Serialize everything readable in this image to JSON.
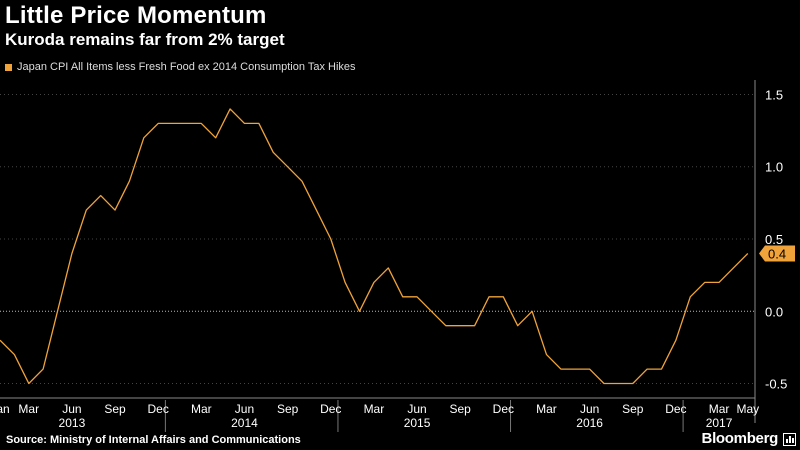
{
  "header": {
    "title": "Little Price Momentum",
    "subtitle": "Kuroda remains far from 2% target"
  },
  "footer": {
    "source": "Source: Ministry of Internal Affairs and Communications",
    "brand": "Bloomberg",
    "brand_icon": "bloomberg-bar-chart-icon"
  },
  "colors": {
    "background": "#000000",
    "series": "#f0a33a",
    "grid": "#444444",
    "zero_line": "#bbbbbb",
    "text": "#ffffff"
  },
  "chart_data": {
    "type": "line",
    "series": [
      {
        "name": "Japan CPI All Items less Fresh Food ex 2014 Consumption Tax Hikes",
        "color": "#f0a33a",
        "x": [
          "2013-01",
          "2013-02",
          "2013-03",
          "2013-04",
          "2013-05",
          "2013-06",
          "2013-07",
          "2013-08",
          "2013-09",
          "2013-10",
          "2013-11",
          "2013-12",
          "2014-01",
          "2014-02",
          "2014-03",
          "2014-04",
          "2014-05",
          "2014-06",
          "2014-07",
          "2014-08",
          "2014-09",
          "2014-10",
          "2014-11",
          "2014-12",
          "2015-01",
          "2015-02",
          "2015-03",
          "2015-04",
          "2015-05",
          "2015-06",
          "2015-07",
          "2015-08",
          "2015-09",
          "2015-10",
          "2015-11",
          "2015-12",
          "2016-01",
          "2016-02",
          "2016-03",
          "2016-04",
          "2016-05",
          "2016-06",
          "2016-07",
          "2016-08",
          "2016-09",
          "2016-10",
          "2016-11",
          "2016-12",
          "2017-01",
          "2017-02",
          "2017-03",
          "2017-04",
          "2017-05"
        ],
        "values": [
          -0.2,
          -0.3,
          -0.5,
          -0.4,
          0.0,
          0.4,
          0.7,
          0.8,
          0.7,
          0.9,
          1.2,
          1.3,
          1.3,
          1.3,
          1.3,
          1.2,
          1.4,
          1.3,
          1.3,
          1.1,
          1.0,
          0.9,
          0.7,
          0.5,
          0.2,
          0.0,
          0.2,
          0.3,
          0.1,
          0.1,
          0.0,
          -0.1,
          -0.1,
          -0.1,
          0.1,
          0.1,
          -0.1,
          0.0,
          -0.3,
          -0.4,
          -0.4,
          -0.4,
          -0.5,
          -0.5,
          -0.5,
          -0.4,
          -0.4,
          -0.2,
          0.1,
          0.2,
          0.2,
          0.3,
          0.4
        ]
      }
    ],
    "last_value_label": "0.4",
    "ylim": [
      -0.6,
      1.6
    ],
    "y_ticks": [
      {
        "value": 1.5,
        "label": "1.5"
      },
      {
        "value": 1.0,
        "label": "1.0"
      },
      {
        "value": 0.5,
        "label": "0.5"
      },
      {
        "value": 0.0,
        "label": "0.0"
      },
      {
        "value": -0.5,
        "label": "-0.5"
      }
    ],
    "x_ticks": [
      {
        "x": "2013-01",
        "label": "Jan"
      },
      {
        "x": "2013-03",
        "label": "Mar"
      },
      {
        "x": "2013-06",
        "label": "Jun"
      },
      {
        "x": "2013-09",
        "label": "Sep"
      },
      {
        "x": "2013-12",
        "label": "Dec"
      },
      {
        "x": "2014-03",
        "label": "Mar"
      },
      {
        "x": "2014-06",
        "label": "Jun"
      },
      {
        "x": "2014-09",
        "label": "Sep"
      },
      {
        "x": "2014-12",
        "label": "Dec"
      },
      {
        "x": "2015-03",
        "label": "Mar"
      },
      {
        "x": "2015-06",
        "label": "Jun"
      },
      {
        "x": "2015-09",
        "label": "Sep"
      },
      {
        "x": "2015-12",
        "label": "Dec"
      },
      {
        "x": "2016-03",
        "label": "Mar"
      },
      {
        "x": "2016-06",
        "label": "Jun"
      },
      {
        "x": "2016-09",
        "label": "Sep"
      },
      {
        "x": "2016-12",
        "label": "Dec"
      },
      {
        "x": "2017-03",
        "label": "Mar"
      },
      {
        "x": "2017-05",
        "label": "May"
      }
    ],
    "year_labels": [
      {
        "x": "2013-06",
        "label": "2013"
      },
      {
        "x": "2014-06",
        "label": "2014"
      },
      {
        "x": "2015-06",
        "label": "2015"
      },
      {
        "x": "2016-06",
        "label": "2016"
      },
      {
        "x": "2017-03",
        "label": "2017"
      }
    ],
    "year_boundaries": [
      "2013-12",
      "2014-12",
      "2015-12",
      "2016-12"
    ],
    "grid": true,
    "y_axis_position": "right",
    "legend_position": "top-left"
  }
}
